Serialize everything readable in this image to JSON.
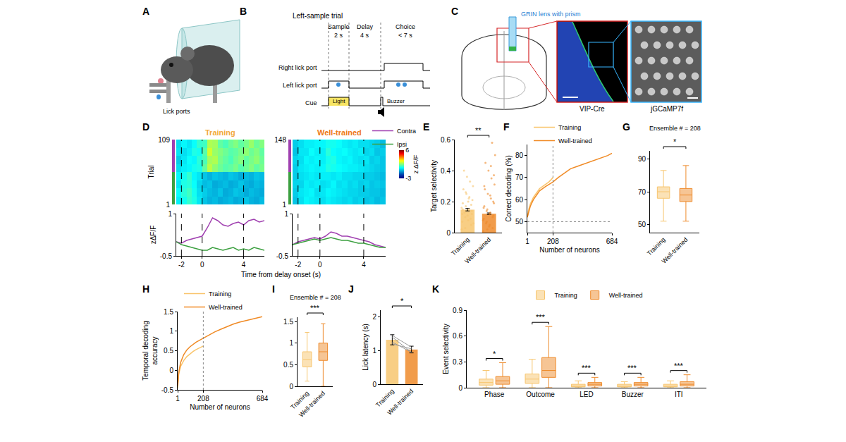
{
  "diagrams": {
    "A": {
      "panel": "A",
      "label": "Lick ports"
    },
    "B": {
      "panel": "B",
      "title": "Left-sample trial",
      "epochs": [
        {
          "name": "Sample",
          "duration": "2 s"
        },
        {
          "name": "Delay",
          "duration": "4 s"
        },
        {
          "name": "Choice",
          "duration": "< 7 s"
        }
      ],
      "rows": [
        "Right lick port",
        "Left lick port",
        "Cue"
      ],
      "cues": [
        "Light",
        "Buzzer"
      ]
    },
    "C": {
      "panel": "C",
      "lens": "GRIN lens with prism",
      "images": [
        "VIP-Cre",
        "jGCaMP7f"
      ]
    }
  },
  "chart_data": [
    {
      "panel": "D",
      "type": "heatmap",
      "title": "Training",
      "color": "#F2A93B",
      "x": [
        -2.25,
        -1.75,
        -1.25,
        -0.75,
        -0.25,
        0.25,
        0.75,
        1.25,
        1.75,
        2.25,
        2.75,
        3.25,
        3.75,
        4.25,
        4.75,
        5.25,
        5.75
      ],
      "y": [
        7.75,
        21.25,
        34.75,
        48.25,
        61.75,
        75.25,
        88.75,
        102.25
      ],
      "cells": [
        [
          0.2,
          0.5,
          0.8,
          0.6,
          0.1,
          -0.3,
          -0.5,
          -0.4,
          -0.6,
          -0.5,
          -0.4,
          -0.6,
          -0.5,
          -0.3,
          -0.5,
          -0.6,
          -0.4
        ],
        [
          0.4,
          0.7,
          0.9,
          0.5,
          0.0,
          -0.2,
          -0.4,
          -0.5,
          -0.3,
          -0.6,
          -0.5,
          -0.3,
          -0.4,
          -0.6,
          -0.4,
          -0.5,
          -0.6
        ],
        [
          0.1,
          0.6,
          0.7,
          0.4,
          -0.1,
          -0.4,
          -0.3,
          -0.6,
          -0.5,
          -0.4,
          -0.6,
          -0.5,
          -0.3,
          -0.5,
          -0.6,
          -0.4,
          -0.5
        ],
        [
          0.3,
          0.5,
          0.8,
          0.3,
          0.1,
          -0.3,
          -0.5,
          -0.3,
          -0.4,
          -0.5,
          -0.3,
          -0.4,
          -0.6,
          -0.4,
          -0.5,
          -0.3,
          -0.4
        ],
        [
          0.0,
          0.2,
          0.3,
          0.5,
          0.6,
          1.2,
          2.0,
          1.6,
          1.3,
          1.1,
          1.2,
          1.4,
          1.1,
          1.3,
          1.5,
          1.2,
          1.4
        ],
        [
          -0.2,
          0.1,
          0.4,
          0.3,
          0.7,
          1.0,
          1.8,
          1.9,
          1.4,
          1.2,
          1.0,
          1.3,
          1.5,
          1.2,
          1.4,
          1.6,
          1.3
        ],
        [
          0.1,
          0.0,
          0.2,
          0.6,
          0.5,
          1.1,
          2.2,
          1.7,
          1.5,
          1.3,
          1.1,
          1.2,
          1.4,
          1.6,
          1.3,
          1.5,
          1.2
        ],
        [
          0.0,
          0.3,
          0.1,
          0.4,
          0.8,
          0.9,
          1.9,
          1.8,
          1.2,
          1.0,
          1.3,
          1.5,
          1.2,
          1.4,
          1.7,
          1.3,
          1.5
        ]
      ],
      "xlim": [
        -2.5,
        6
      ],
      "ylim": [
        1,
        109
      ],
      "yticks": [
        1,
        109
      ],
      "ylabel": "Trial",
      "tick_labels": "y",
      "events": [
        -2,
        0,
        4
      ],
      "groups": [
        {
          "color": "#A040B0",
          "trials": [
            55,
            109
          ]
        },
        {
          "color": "#3CA040",
          "trials": [
            1,
            55
          ]
        }
      ],
      "color_range": [
        -3,
        6
      ]
    },
    {
      "type": "heatmap",
      "title": "Well-trained",
      "color": "#EE7A1A",
      "x": [
        -2.25,
        -1.75,
        -1.25,
        -0.75,
        -0.25,
        0.25,
        0.75,
        1.25,
        1.75,
        2.25,
        2.75,
        3.25,
        3.75,
        4.25,
        4.75,
        5.25,
        5.75
      ],
      "y": [
        10.19,
        28.56,
        46.94,
        65.31,
        83.69,
        102.06,
        120.44,
        138.81
      ],
      "cells": [
        [
          -0.3,
          0.0,
          0.3,
          0.2,
          0.1,
          0.0,
          0.2,
          0.1,
          0.0,
          -0.1,
          0.0,
          -0.2,
          -0.1,
          -0.3,
          -0.2,
          -0.4,
          -0.3
        ],
        [
          -0.2,
          0.1,
          0.2,
          0.3,
          0.0,
          0.1,
          0.3,
          0.2,
          0.1,
          0.0,
          -0.1,
          -0.1,
          -0.2,
          -0.2,
          -0.3,
          -0.3,
          -0.4
        ],
        [
          -0.1,
          -0.1,
          0.2,
          0.1,
          0.2,
          0.0,
          0.1,
          0.3,
          0.0,
          0.1,
          -0.1,
          0.0,
          -0.2,
          -0.1,
          -0.3,
          -0.2,
          -0.3
        ],
        [
          -0.2,
          0.0,
          0.1,
          0.2,
          0.1,
          0.2,
          0.2,
          0.1,
          0.2,
          0.0,
          0.0,
          -0.1,
          -0.1,
          -0.2,
          -0.2,
          -0.3,
          -0.4
        ],
        [
          -0.2,
          0.1,
          0.2,
          0.3,
          0.2,
          0.3,
          0.6,
          0.5,
          0.4,
          0.3,
          0.2,
          0.2,
          0.1,
          0.0,
          -0.1,
          -0.2,
          -0.3
        ],
        [
          -0.1,
          0.0,
          0.3,
          0.2,
          0.3,
          0.2,
          0.5,
          0.6,
          0.3,
          0.2,
          0.3,
          0.1,
          0.0,
          0.1,
          -0.2,
          -0.1,
          -0.3
        ],
        [
          -0.3,
          0.1,
          0.1,
          0.4,
          0.2,
          0.2,
          0.7,
          0.4,
          0.3,
          0.4,
          0.2,
          0.1,
          0.2,
          -0.1,
          0.0,
          -0.3,
          -0.2
        ],
        [
          -0.2,
          0.0,
          0.2,
          0.2,
          0.3,
          0.3,
          0.5,
          0.5,
          0.4,
          0.2,
          0.1,
          0.2,
          0.0,
          0.0,
          -0.1,
          -0.2,
          -0.4
        ]
      ],
      "xlim": [
        -2.5,
        6
      ],
      "ylim": [
        1,
        148
      ],
      "yticks": [
        1,
        148
      ],
      "tick_labels": "y",
      "events": [
        -2,
        0,
        4
      ],
      "groups": [
        {
          "color": "#A040B0",
          "trials": [
            74.5,
            148
          ]
        },
        {
          "color": "#3CA040",
          "trials": [
            1,
            74.5
          ]
        }
      ],
      "color_range": [
        -3,
        6
      ],
      "color_ticks": [
        -3,
        6
      ],
      "colorbar_label": "z ΔF/F"
    },
    {
      "type": "line",
      "x": [
        -2.5,
        -2,
        -1.5,
        -1,
        -0.5,
        0,
        0.5,
        1,
        1.5,
        2,
        2.5,
        3,
        3.5,
        4,
        4.5,
        5,
        5.5,
        6
      ],
      "series": [
        {
          "name": "Contra",
          "color": "#A040B0",
          "values": [
            0.0,
            -0.05,
            0.05,
            0.1,
            0.15,
            0.2,
            0.5,
            0.85,
            0.75,
            0.6,
            0.55,
            0.65,
            0.7,
            0.6,
            0.75,
            0.8,
            0.7,
            0.75
          ]
        },
        {
          "name": "Ipsi",
          "color": "#3CA040",
          "values": [
            0.0,
            -0.1,
            -0.15,
            -0.2,
            -0.25,
            -0.3,
            -0.3,
            -0.2,
            -0.25,
            -0.3,
            -0.25,
            -0.2,
            -0.3,
            -0.25,
            -0.3,
            -0.2,
            -0.25,
            -0.3
          ]
        }
      ],
      "xlim": [
        -2.5,
        6
      ],
      "xticks": [
        -2,
        0,
        4
      ],
      "ylim": [
        -0.5,
        1
      ],
      "yticks": [
        -0.5,
        1
      ],
      "ylabel": "zΔF/F",
      "xlabel": "Time from delay onset (s)",
      "events": [
        -2,
        0,
        4
      ],
      "legend": "top right"
    },
    {
      "type": "line",
      "x": [
        -2.5,
        -2,
        -1.5,
        -1,
        -0.5,
        0,
        0.5,
        1,
        1.5,
        2,
        2.5,
        3,
        3.5,
        4,
        4.5,
        5,
        5.5,
        6
      ],
      "series": [
        {
          "color": "#A040B0",
          "values": [
            -0.1,
            0.0,
            0.05,
            0.1,
            0.15,
            0.1,
            0.2,
            0.35,
            0.3,
            0.2,
            0.2,
            0.15,
            0.1,
            0.05,
            0.0,
            -0.1,
            -0.15,
            -0.2
          ]
        },
        {
          "color": "#3CA040",
          "values": [
            -0.1,
            -0.05,
            0.0,
            0.05,
            0.1,
            0.05,
            0.1,
            0.15,
            0.1,
            0.05,
            0.05,
            0.0,
            -0.05,
            -0.05,
            -0.1,
            -0.15,
            -0.2,
            -0.2
          ]
        }
      ],
      "xlim": [
        -2.5,
        6
      ],
      "xticks": [
        -2,
        0,
        4
      ],
      "ylim": [
        -0.5,
        1
      ],
      "yticks": [
        -0.5,
        1
      ],
      "events": [
        -2,
        0,
        4
      ]
    },
    {
      "panel": "E",
      "type": "bar",
      "categories": [
        "Training",
        "Well-trained"
      ],
      "values": [
        0.148,
        0.122
      ],
      "errors": [
        0.008,
        0.005
      ],
      "colors": [
        "#F7C56E",
        "#EE8B2C"
      ],
      "points": [
        [
          0.02,
          0.05,
          0.08,
          0.1,
          0.12,
          0.14,
          0.15,
          0.17,
          0.19,
          0.21,
          0.23,
          0.25,
          0.28,
          0.3,
          0.33,
          0.36,
          0.4,
          0.06,
          0.09,
          0.11,
          0.13,
          0.16,
          0.18,
          0.2,
          0.03,
          0.07,
          0.12,
          0.22,
          0.26,
          0.15
        ],
        [
          0.01,
          0.03,
          0.05,
          0.07,
          0.09,
          0.11,
          0.13,
          0.15,
          0.17,
          0.19,
          0.22,
          0.25,
          0.28,
          0.31,
          0.35,
          0.4,
          0.45,
          0.5,
          0.58,
          0.04,
          0.06,
          0.08,
          0.1,
          0.12,
          0.14,
          0.16,
          0.2,
          0.24,
          0.02,
          0.3,
          0.37,
          0.43
        ]
      ],
      "ylim": [
        0,
        0.6
      ],
      "yticks": [
        0,
        0.2,
        0.4,
        0.6
      ],
      "ylabel": "Target selectivity",
      "significance": "**"
    },
    {
      "panel": "F",
      "type": "line",
      "series": [
        {
          "name": "Training",
          "color": "#F9C46B",
          "x": [
            1,
            10,
            25,
            50,
            75,
            100,
            125,
            150,
            175,
            208
          ],
          "values": [
            52,
            55,
            58,
            61,
            63,
            65,
            66,
            67,
            68,
            70
          ]
        },
        {
          "name": "Well-trained",
          "color": "#F08A24",
          "x": [
            1,
            10,
            25,
            50,
            75,
            100,
            150,
            208,
            250,
            300,
            350,
            400,
            450,
            500,
            550,
            600,
            650,
            684
          ],
          "values": [
            52,
            54,
            57,
            60,
            62,
            64,
            66,
            68,
            70,
            72,
            74,
            75,
            76,
            77,
            78,
            79,
            80,
            81
          ]
        }
      ],
      "xlim": [
        1,
        684
      ],
      "xticks": [
        1,
        208,
        684
      ],
      "ylim": [
        45,
        85
      ],
      "yticks": [
        50,
        60,
        70,
        80
      ],
      "xlabel": "Number of neurons",
      "ylabel": "Correct decoding (%)",
      "hline": 50,
      "vline": 208,
      "legend": "top left"
    },
    {
      "panel": "G",
      "type": "box",
      "annotation": "Ensemble # = 208",
      "categories": [
        "Training",
        "Well-trained"
      ],
      "colors": [
        "#F7C56E",
        "#EE8B2C"
      ],
      "q1": [
        66,
        64
      ],
      "median": [
        70,
        68
      ],
      "q3": [
        73,
        72
      ],
      "lowerfence": [
        52,
        52
      ],
      "upperfence": [
        83,
        86
      ],
      "ylim": [
        45,
        95
      ],
      "yticks": [
        50,
        70,
        90
      ],
      "significance": "*"
    },
    {
      "panel": "H",
      "type": "line",
      "series": [
        {
          "name": "Training",
          "color": "#F9C46B",
          "x": [
            1,
            10,
            25,
            50,
            75,
            100,
            125,
            150,
            175,
            208
          ],
          "values": [
            -0.45,
            -0.1,
            0.1,
            0.25,
            0.35,
            0.42,
            0.48,
            0.53,
            0.57,
            0.62
          ]
        },
        {
          "name": "Well-trained",
          "color": "#F08A24",
          "x": [
            1,
            10,
            25,
            50,
            75,
            100,
            150,
            208,
            250,
            300,
            350,
            400,
            450,
            500,
            550,
            600,
            650,
            684
          ],
          "values": [
            -0.4,
            -0.05,
            0.2,
            0.4,
            0.52,
            0.6,
            0.72,
            0.82,
            0.9,
            0.98,
            1.05,
            1.12,
            1.18,
            1.23,
            1.27,
            1.31,
            1.34,
            1.37
          ]
        }
      ],
      "xlim": [
        1,
        684
      ],
      "xticks": [
        1,
        208,
        684
      ],
      "ylim": [
        -0.5,
        1.5
      ],
      "yticks": [
        -0.5,
        0,
        0.5,
        1,
        1.5
      ],
      "xlabel": "Number of neurons",
      "ylabel": "Temporal decoding accuracy",
      "vline": 208,
      "legend": "top left"
    },
    {
      "panel": "I",
      "type": "box",
      "annotation": "Ensemble # = 208",
      "categories": [
        "Training",
        "Well-trained"
      ],
      "colors": [
        "#F7C56E",
        "#EE8B2C"
      ],
      "q1": [
        0.45,
        0.6
      ],
      "median": [
        0.62,
        0.8
      ],
      "q3": [
        0.8,
        1.0
      ],
      "lowerfence": [
        0.12,
        0.0
      ],
      "upperfence": [
        1.25,
        1.45
      ],
      "ylim": [
        0,
        1.6
      ],
      "yticks": [
        0,
        0.5,
        1,
        1.5
      ],
      "significance": "***"
    },
    {
      "panel": "J",
      "type": "bar",
      "categories": [
        "Training",
        "Well-trained"
      ],
      "values": [
        1.32,
        1.03
      ],
      "errors": [
        0.15,
        0.1
      ],
      "colors": [
        "#F7C56E",
        "#EE8B2C"
      ],
      "paired": [
        [
          1.45,
          1.1
        ],
        [
          1.4,
          0.95
        ],
        [
          1.25,
          0.95
        ],
        [
          1.2,
          1.05
        ]
      ],
      "ylim": [
        0,
        2.2
      ],
      "yticks": [
        0,
        1,
        2
      ],
      "ylabel": "Lick latency (s)",
      "significance": "*"
    },
    {
      "panel": "K",
      "type": "box",
      "categories": [
        "Phase",
        "Outcome",
        "LED",
        "Buzzer",
        "ITI"
      ],
      "series": [
        {
          "name": "Training",
          "color": "#F7C56E",
          "q1": [
            0.03,
            0.05,
            0.01,
            0.01,
            0.01
          ],
          "median": [
            0.06,
            0.1,
            0.02,
            0.02,
            0.02
          ],
          "q3": [
            0.1,
            0.16,
            0.04,
            0.04,
            0.04
          ],
          "lowerfence": [
            0,
            0,
            0,
            0,
            0
          ],
          "upperfence": [
            0.2,
            0.33,
            0.08,
            0.07,
            0.08
          ]
        },
        {
          "name": "Well-trained",
          "color": "#EE8B2C",
          "q1": [
            0.04,
            0.12,
            0.02,
            0.02,
            0.02
          ],
          "median": [
            0.08,
            0.2,
            0.04,
            0.04,
            0.04
          ],
          "q3": [
            0.13,
            0.35,
            0.06,
            0.06,
            0.07
          ],
          "lowerfence": [
            0,
            0,
            0,
            0,
            0
          ],
          "upperfence": [
            0.29,
            0.71,
            0.12,
            0.12,
            0.15
          ]
        }
      ],
      "ylim": [
        0,
        0.9
      ],
      "yticks": [
        0,
        0.3,
        0.6,
        0.9
      ],
      "ylabel": "Event selectivity",
      "significance": [
        "*",
        "***",
        "***",
        "***",
        "***"
      ],
      "legend": "top"
    }
  ]
}
